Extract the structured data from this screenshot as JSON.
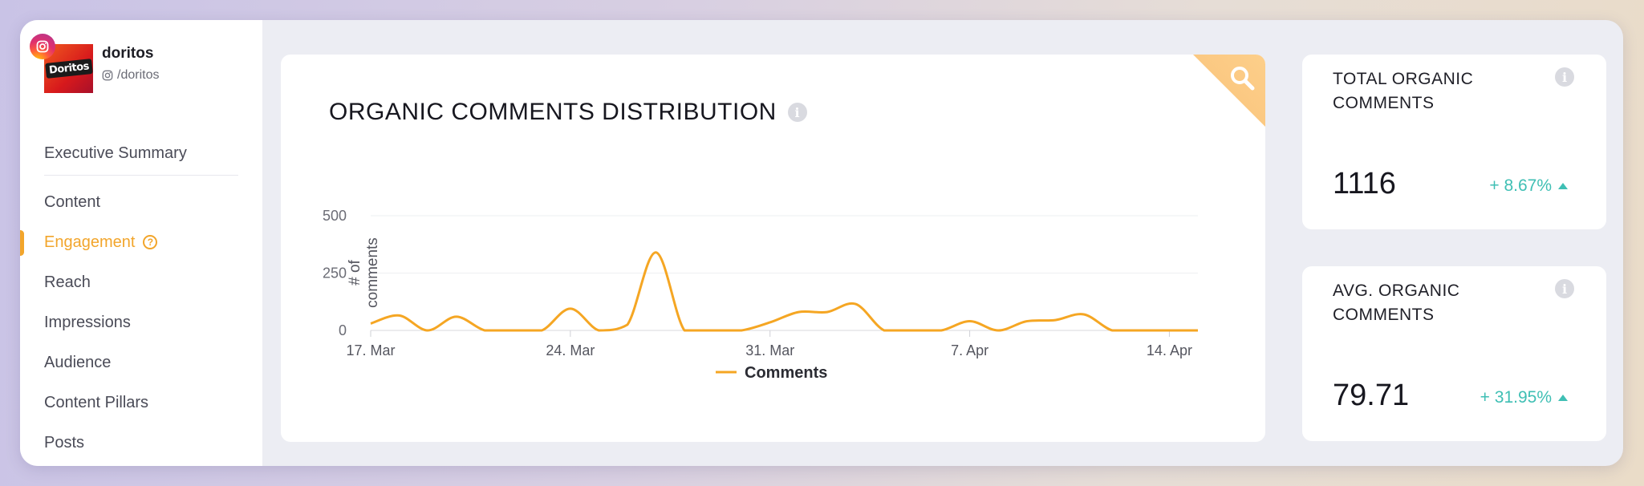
{
  "profile": {
    "name": "doritos",
    "handle": "/doritos",
    "logo_text": "Doritos",
    "platform_icon": "instagram-icon"
  },
  "sidebar": {
    "items": [
      {
        "label": "Executive Summary",
        "active": false
      },
      {
        "label": "Content",
        "active": false
      },
      {
        "label": "Engagement",
        "active": true
      },
      {
        "label": "Reach",
        "active": false
      },
      {
        "label": "Impressions",
        "active": false
      },
      {
        "label": "Audience",
        "active": false
      },
      {
        "label": "Content Pillars",
        "active": false
      },
      {
        "label": "Posts",
        "active": false
      }
    ],
    "accent_color": "#f2a52b"
  },
  "chart_card": {
    "title": "ORGANIC COMMENTS DISTRIBUTION",
    "corner_icon": "search-icon"
  },
  "chart_data": {
    "type": "line",
    "ylabel": "# of comments",
    "xlabel": "",
    "ylim": [
      0,
      500
    ],
    "yticks": [
      0,
      250,
      500
    ],
    "xticks": [
      "17. Mar",
      "24. Mar",
      "31. Mar",
      "7. Apr",
      "14. Apr"
    ],
    "series": [
      {
        "name": "Comments",
        "color": "#f5a623",
        "x": [
          "17. Mar",
          "18. Mar",
          "19. Mar",
          "20. Mar",
          "21. Mar",
          "22. Mar",
          "23. Mar",
          "24. Mar",
          "25. Mar",
          "26. Mar",
          "27. Mar",
          "28. Mar",
          "29. Mar",
          "30. Mar",
          "31. Mar",
          "1. Apr",
          "2. Apr",
          "3. Apr",
          "4. Apr",
          "5. Apr",
          "6. Apr",
          "7. Apr",
          "8. Apr",
          "9. Apr",
          "10. Apr",
          "11. Apr",
          "12. Apr",
          "13. Apr",
          "14. Apr",
          "15. Apr"
        ],
        "values": [
          30,
          65,
          0,
          60,
          0,
          0,
          0,
          95,
          0,
          25,
          340,
          0,
          0,
          0,
          35,
          80,
          80,
          115,
          0,
          0,
          0,
          40,
          0,
          40,
          45,
          70,
          0,
          0,
          0,
          0
        ]
      }
    ],
    "legend_position": "bottom-center",
    "grid": true
  },
  "kpis": [
    {
      "title": "TOTAL ORGANIC COMMENTS",
      "value": "1116",
      "change": "+ 8.67%",
      "trend": "up"
    },
    {
      "title": "AVG. ORGANIC COMMENTS",
      "value": "79.71",
      "change": "+ 31.95%",
      "trend": "up"
    }
  ],
  "colors": {
    "positive": "#3fbfb4",
    "line": "#f5a623"
  }
}
